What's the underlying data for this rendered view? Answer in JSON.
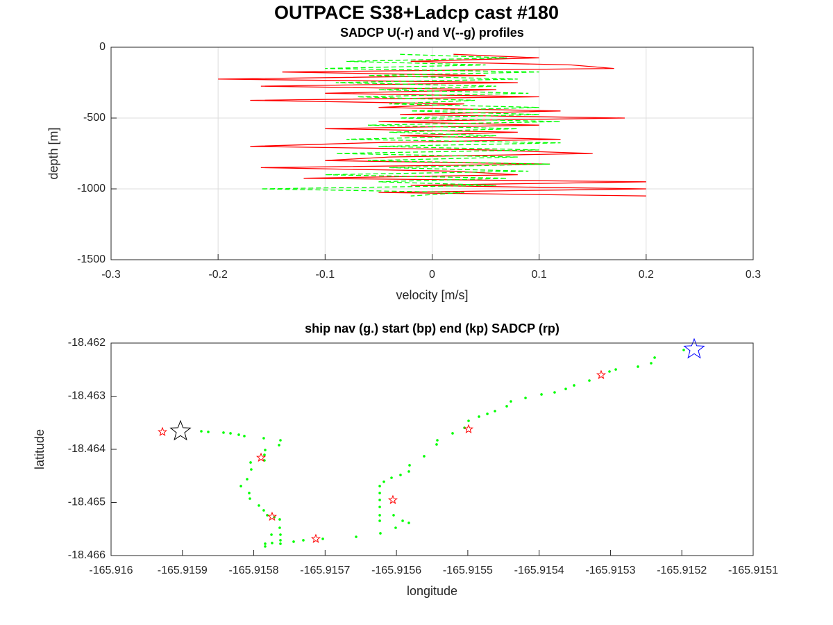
{
  "title": "OUTPACE S38+Ladcp cast #180",
  "chart_data": [
    {
      "type": "line",
      "title": "SADCP U(-r) and V(--g) profiles",
      "x_label": "velocity [m/s]",
      "y_label": "depth [m]",
      "xlim": [
        -0.3,
        0.3
      ],
      "xticks": [
        -0.3,
        -0.2,
        -0.1,
        0,
        0.1,
        0.2,
        0.3
      ],
      "ylim": [
        -1500,
        0
      ],
      "yticks": [
        -1500,
        -1000,
        -500,
        0
      ],
      "grid": true,
      "y": [
        -50,
        -75,
        -100,
        -125,
        -150,
        -175,
        -200,
        -225,
        -250,
        -275,
        -300,
        -325,
        -350,
        -375,
        -400,
        -425,
        -450,
        -475,
        -500,
        -525,
        -550,
        -575,
        -600,
        -625,
        -650,
        -675,
        -700,
        -725,
        -750,
        -775,
        -800,
        -825,
        -850,
        -875,
        -900,
        -925,
        -950,
        -975,
        -1000,
        -1025,
        -1050
      ],
      "series": [
        {
          "color": "#ff0000",
          "dashed": false,
          "values": [
            0.02,
            0.1,
            -0.02,
            0.13,
            0.17,
            -0.14,
            0.05,
            -0.2,
            0.08,
            -0.16,
            0.06,
            -0.1,
            0.1,
            -0.17,
            0.03,
            -0.05,
            0.12,
            -0.03,
            0.18,
            -0.05,
            0.1,
            -0.1,
            0.08,
            -0.03,
            0.12,
            -0.06,
            -0.17,
            0.05,
            0.15,
            -0.04,
            -0.1,
            0.11,
            -0.16,
            0.02,
            0.08,
            -0.12,
            0.2,
            -0.02,
            0.2,
            -0.05,
            0.2
          ]
        },
        {
          "color": "#00ff00",
          "dashed": true,
          "values": [
            -0.03,
            0.07,
            -0.08,
            0.05,
            -0.1,
            0.1,
            -0.06,
            0.08,
            -0.09,
            0.06,
            -0.05,
            0.09,
            -0.07,
            0.04,
            -0.04,
            0.1,
            -0.02,
            0.1,
            -0.03,
            0.12,
            -0.06,
            0.08,
            -0.04,
            0.06,
            -0.08,
            0.12,
            -0.05,
            0.1,
            -0.09,
            0.08,
            -0.06,
            0.11,
            -0.04,
            0.09,
            -0.1,
            0.07,
            -0.05,
            0.06,
            -0.16,
            0.03,
            -0.02
          ]
        }
      ]
    },
    {
      "type": "scatter",
      "title": "ship nav (g.) start (bp) end (kp) SADCP (rp)",
      "x_label": "longitude",
      "y_label": "latitude",
      "xlim": [
        -165.916,
        -165.9151
      ],
      "xticks": [
        -165.916,
        -165.9159,
        -165.9158,
        -165.9157,
        -165.9156,
        -165.9155,
        -165.9154,
        -165.9153,
        -165.9152,
        -165.9151
      ],
      "ylim": [
        -18.466,
        -18.462
      ],
      "yticks": [
        -18.466,
        -18.465,
        -18.464,
        -18.463,
        -18.462
      ],
      "grid": false,
      "series": [
        {
          "color": "#00ff00",
          "marker": "dot",
          "x": [
            -165.9158735,
            -165.9158638,
            -165.9158424,
            -165.9158326,
            -165.915821,
            -165.9158132,
            -165.915786,
            -165.9157626,
            -165.9157645,
            -165.915784,
            -165.915785,
            -165.915785,
            -165.9158044,
            -165.9158035,
            -165.9158093,
            -165.915818,
            -165.9158064,
            -165.9158054,
            -165.9157928,
            -165.915786,
            -165.9157811,
            -165.9157713,
            -165.9157636,
            -165.9157636,
            -165.9157626,
            -165.9157626,
            -165.9157626,
            -165.9157752,
            -165.915784,
            -165.915784,
            -165.9157743,
            -165.9157441,
            -165.9157305,
            -165.9157032,
            -165.9156565,
            -165.9156225,
            -165.9156234,
            -165.9156234,
            -165.9156234,
            -165.9156234,
            -165.9156234,
            -165.9156234,
            -165.9156176,
            -165.9156069,
            -165.9155943,
            -165.9155826,
            -165.9155816,
            -165.9155612,
            -165.9155437,
            -165.9155427,
            -165.9155213,
            -165.9155047,
            -165.9154989,
            -165.9154843,
            -165.9154726,
            -165.9154619,
            -165.9154454,
            -165.9154396,
            -165.9154191,
            -165.9153967,
            -165.9153783,
            -165.9153627,
            -165.915351,
            -165.9153296,
            -165.9153014,
            -165.9152926,
            -165.9152615,
            -165.915243,
            -165.9152381,
            -165.9151973,
            -165.915604,
            -165.9156011,
            -165.9155913,
            -165.9155826
          ],
          "y": [
            -18.46366,
            -18.463673,
            -18.463686,
            -18.463699,
            -18.463725,
            -18.463751,
            -18.463791,
            -18.46383,
            -18.463921,
            -18.464013,
            -18.464104,
            -18.464209,
            -18.464248,
            -18.464379,
            -18.464562,
            -18.464692,
            -18.464823,
            -18.464928,
            -18.465058,
            -18.46515,
            -18.465241,
            -18.46528,
            -18.46532,
            -18.465477,
            -18.465607,
            -18.465712,
            -18.465777,
            -18.465607,
            -18.465777,
            -18.465829,
            -18.465764,
            -18.465738,
            -18.465712,
            -18.465686,
            -18.465647,
            -18.465581,
            -18.465346,
            -18.465241,
            -18.465085,
            -18.464954,
            -18.464823,
            -18.464692,
            -18.46461,
            -18.464536,
            -18.464483,
            -18.464418,
            -18.4643,
            -18.46413,
            -18.463908,
            -18.46383,
            -18.463699,
            -18.463595,
            -18.463464,
            -18.463385,
            -18.463333,
            -18.463281,
            -18.463189,
            -18.463098,
            -18.463033,
            -18.462967,
            -18.462928,
            -18.462863,
            -18.462797,
            -18.462706,
            -18.462536,
            -18.462497,
            -18.462444,
            -18.462379,
            -18.462274,
            -18.462131,
            -18.465241,
            -18.465477,
            -18.465346,
            -18.465385
          ]
        },
        {
          "color": "#ff0000",
          "marker": "star",
          "size": 6,
          "x": [
            -165.915928,
            -165.9157898,
            -165.9157743,
            -165.915713,
            -165.915605,
            -165.9154989,
            -165.9153131
          ],
          "y": [
            -18.463673,
            -18.464157,
            -18.465268,
            -18.465686,
            -18.464954,
            -18.463621,
            -18.462601
          ]
        },
        {
          "color": "#000000",
          "marker": "star",
          "size": 15,
          "x": [
            -165.9159027
          ],
          "y": [
            -18.46366
          ]
        },
        {
          "color": "#0000ff",
          "marker": "star",
          "size": 15,
          "x": [
            -165.9151827
          ],
          "y": [
            -18.462118
          ]
        }
      ]
    }
  ]
}
